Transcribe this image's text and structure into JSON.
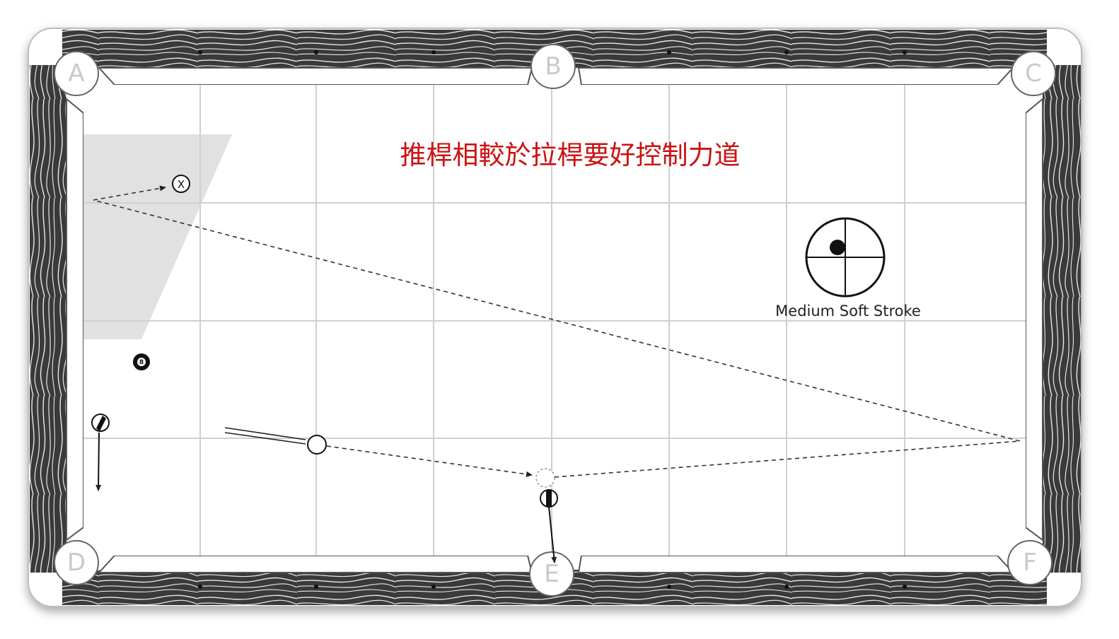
{
  "title": "推桿相較於拉桿要好控制力道",
  "pockets": [
    {
      "id": "pocket-a",
      "label": "A"
    },
    {
      "id": "pocket-b",
      "label": "B"
    },
    {
      "id": "pocket-c",
      "label": "C"
    },
    {
      "id": "pocket-d",
      "label": "D"
    },
    {
      "id": "pocket-e",
      "label": "E"
    },
    {
      "id": "pocket-f",
      "label": "F"
    }
  ],
  "cue_tip": {
    "caption": "Medium Soft Stroke"
  },
  "balls": {
    "target_marker": "X",
    "object_ball_label": "8"
  },
  "colors": {
    "title": "#cc1111",
    "rail_dark": "#2a2a2a",
    "grid": "#cfcfcf",
    "shade": "#dcdcdc",
    "path": "#333333"
  }
}
